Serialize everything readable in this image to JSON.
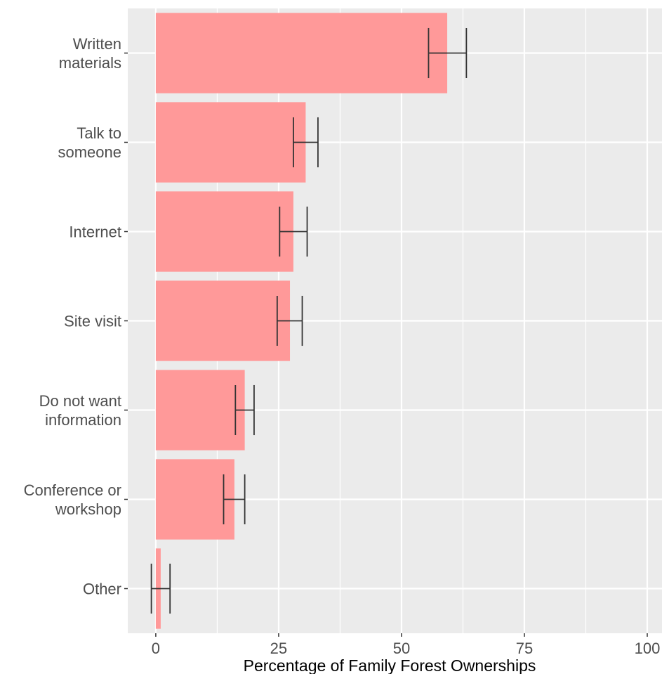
{
  "chart_data": {
    "type": "bar",
    "orientation": "horizontal",
    "categories": [
      "Written\nmaterials",
      "Talk to\nsomeone",
      "Internet",
      "Site visit",
      "Do not want\ninformation",
      "Conference or\nworkshop",
      "Other"
    ],
    "values": [
      59.3,
      30.5,
      28.0,
      27.3,
      18.1,
      16.0,
      1.0
    ],
    "error_low": [
      55.5,
      28.0,
      25.2,
      24.7,
      16.2,
      13.8,
      -0.9
    ],
    "error_high": [
      63.2,
      33.0,
      30.8,
      29.8,
      20.0,
      18.1,
      2.9
    ],
    "xlabel": "Percentage of Family Forest Ownerships",
    "ylabel": "",
    "xlim": [
      -5.7,
      103
    ],
    "x_ticks": [
      0,
      25,
      50,
      75,
      100
    ],
    "grid": true,
    "colors": {
      "bar": "#ff9999",
      "panel": "#ebebeb",
      "grid": "#ffffff",
      "errorbar": "#333333"
    }
  }
}
